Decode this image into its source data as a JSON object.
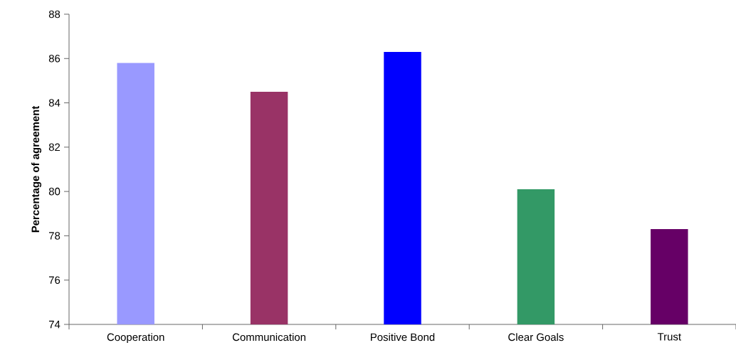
{
  "chart_data": {
    "type": "bar",
    "ylabel": "Percentage of agreement",
    "categories": [
      "Cooperation",
      "Communication",
      "Positive Bond",
      "Clear Goals",
      "Trust"
    ],
    "values": [
      85.8,
      84.5,
      86.3,
      80.1,
      78.3
    ],
    "colors": [
      "#9999ff",
      "#993366",
      "#0000ff",
      "#339966",
      "#660066"
    ],
    "ylim": [
      74,
      88
    ],
    "yticks": [
      74,
      76,
      78,
      80,
      82,
      84,
      86,
      88
    ],
    "grid": false
  }
}
